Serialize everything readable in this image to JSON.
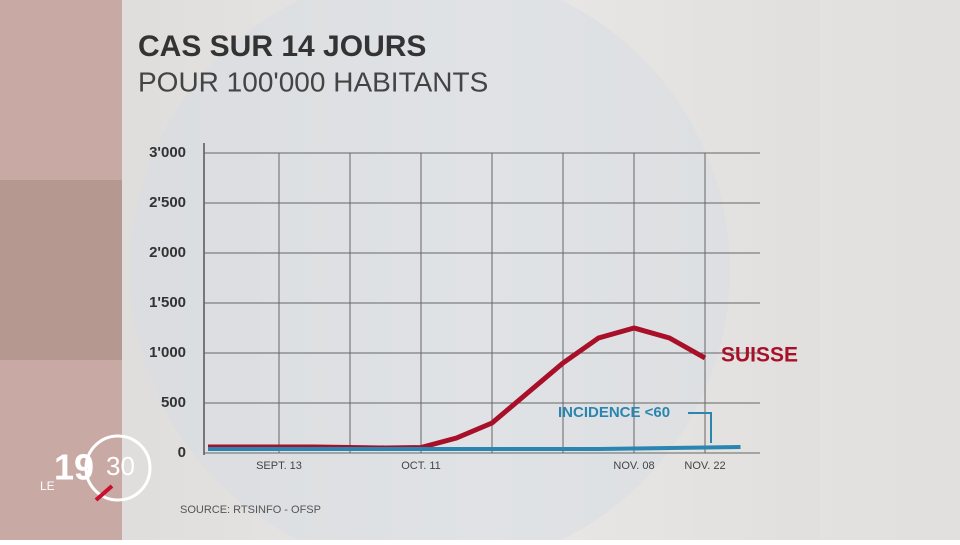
{
  "chart_data": {
    "type": "line",
    "title": "CAS SUR 14 JOURS",
    "subtitle": "POUR 100'000 HABITANTS",
    "source": "SOURCE: RTSINFO - OFSP",
    "categories": [
      null,
      null,
      "SEPT. 13",
      null,
      null,
      null,
      "OCT. 11",
      null,
      null,
      null,
      null,
      null,
      "NOV. 08",
      null,
      "NOV. 22",
      null
    ],
    "series": [
      {
        "name": "SUISSE",
        "color": "#a8102a",
        "values": [
          60,
          60,
          60,
          60,
          55,
          50,
          55,
          150,
          300,
          600,
          900,
          1150,
          1250,
          1150,
          950,
          null
        ]
      },
      {
        "name": "INCIDENCE <60",
        "color": "#2a86b0",
        "values": [
          40,
          40,
          40,
          40,
          40,
          40,
          40,
          40,
          40,
          40,
          40,
          40,
          45,
          50,
          55,
          60
        ]
      }
    ],
    "ylim": [
      0,
      3000
    ],
    "yticks": [
      0,
      500,
      {
        "value": 1000,
        "label": "1'000"
      },
      {
        "value": 1500,
        "label": "1'500"
      },
      {
        "value": 2000,
        "label": "2'000"
      },
      {
        "value": 2500,
        "label": "2'500"
      },
      {
        "value": 3000,
        "label": "3'000"
      }
    ],
    "grid": true
  },
  "logo": {
    "prefix": "LE",
    "hour": "19",
    "minute": "30"
  }
}
